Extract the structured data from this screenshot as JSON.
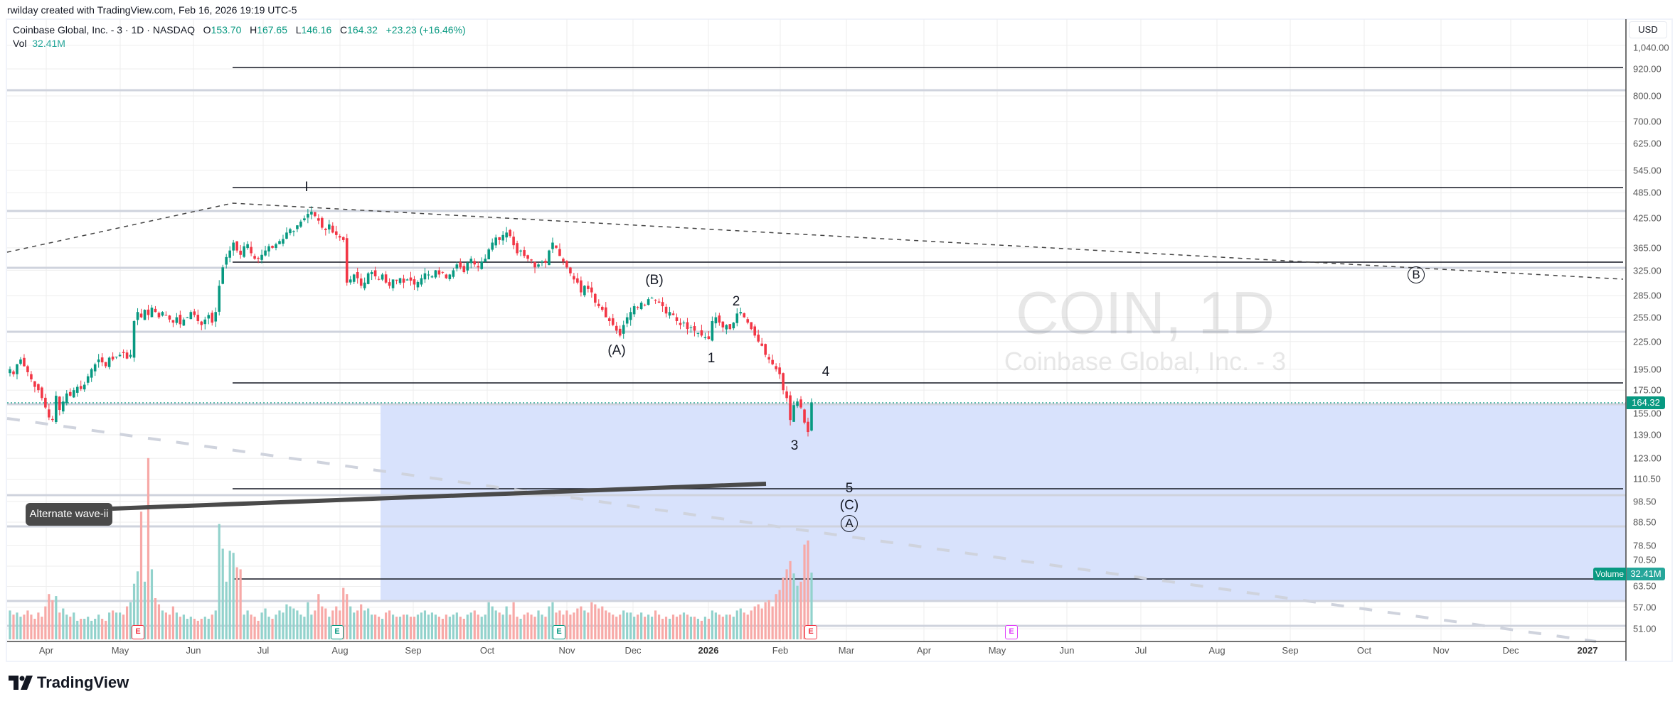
{
  "header": {
    "credit": "rwilday created with TradingView.com, Feb 16, 2026 19:19 UTC-5"
  },
  "legend": {
    "symbol": "Coinbase Global, Inc. - 3 · 1D · NASDAQ",
    "o_label": "O",
    "o": "153.70",
    "h_label": "H",
    "h": "167.65",
    "l_label": "L",
    "l": "146.16",
    "c_label": "C",
    "c": "164.32",
    "change": "+23.23 (+16.46%)",
    "vol_label": "Vol",
    "vol": "32.41M"
  },
  "watermark": {
    "ticker": "COIN, 1D",
    "name": "Coinbase Global, Inc. - 3"
  },
  "price_axis": {
    "currency": "USD",
    "labels": [
      "1,040.00",
      "920.00",
      "800.00",
      "700.00",
      "625.00",
      "545.00",
      "485.00",
      "425.00",
      "365.00",
      "325.00",
      "285.00",
      "255.00",
      "225.00",
      "195.00",
      "175.00",
      "155.00",
      "139.00",
      "123.00",
      "110.50",
      "98.50",
      "88.50",
      "78.50",
      "70.50",
      "63.50",
      "57.00",
      "51.00"
    ],
    "last_price": "164.32",
    "volume_label": "Volume",
    "volume_value": "32.41M"
  },
  "time_axis": {
    "labels": [
      "Apr",
      "May",
      "Jun",
      "Jul",
      "Aug",
      "Sep",
      "Oct",
      "Nov",
      "Dec",
      "2026",
      "Feb",
      "Mar",
      "Apr",
      "May",
      "Jun",
      "Jul",
      "Aug",
      "Sep",
      "Oct",
      "Nov",
      "Dec",
      "2027"
    ]
  },
  "annotations": {
    "alternate": "Alternate wave-ii",
    "waves": [
      "I",
      "(B)",
      "(A)",
      "1",
      "2",
      "3",
      "4",
      "5",
      "(C)",
      "A",
      "B"
    ]
  },
  "earnings": [
    "E",
    "E",
    "E",
    "E",
    "E"
  ],
  "colors": {
    "up": "#089981",
    "down": "#f23645",
    "vol_up": "#92d2cc",
    "vol_down": "#f7a9a7",
    "zone": "#d6e0fc"
  },
  "chart_data": {
    "type": "candlestick",
    "title": "Coinbase Global, Inc. - 3 · 1D · NASDAQ",
    "scale": "log",
    "ylim": [
      48,
      1100
    ],
    "x_range": [
      "2025-03-20",
      "2026-12-31"
    ],
    "closes": [
      195,
      190,
      200,
      205,
      198,
      192,
      185,
      178,
      175,
      168,
      160,
      152,
      150,
      170,
      158,
      165,
      172,
      170,
      175,
      178,
      176,
      180,
      188,
      195,
      200,
      205,
      202,
      198,
      207,
      205,
      208,
      210,
      212,
      206,
      210,
      250,
      262,
      255,
      265,
      258,
      268,
      262,
      255,
      262,
      258,
      252,
      248,
      255,
      246,
      252,
      255,
      262,
      258,
      250,
      245,
      252,
      258,
      248,
      262,
      300,
      330,
      348,
      360,
      375,
      360,
      352,
      368,
      372,
      355,
      345,
      345,
      352,
      360,
      368,
      365,
      372,
      378,
      382,
      395,
      402,
      398,
      410,
      418,
      425,
      435,
      440,
      430,
      420,
      405,
      400,
      412,
      395,
      390,
      385,
      380,
      305,
      310,
      318,
      312,
      300,
      305,
      320,
      322,
      315,
      310,
      318,
      305,
      300,
      310,
      308,
      312,
      305,
      310,
      308,
      302,
      306,
      312,
      320,
      318,
      315,
      325,
      318,
      322,
      312,
      318,
      325,
      335,
      330,
      322,
      338,
      345,
      335,
      330,
      340,
      345,
      362,
      375,
      385,
      380,
      390,
      395,
      388,
      370,
      355,
      360,
      350,
      345,
      342,
      330,
      335,
      340,
      338,
      360,
      375,
      365,
      350,
      340,
      330,
      320,
      310,
      305,
      290,
      300,
      295,
      290,
      275,
      270,
      265,
      255,
      250,
      245,
      238,
      232,
      245,
      255,
      262,
      270,
      268,
      275,
      272,
      280,
      282,
      278,
      275,
      270,
      260,
      262,
      258,
      250,
      245,
      248,
      240,
      242,
      238,
      235,
      232,
      230,
      228,
      250,
      255,
      248,
      242,
      245,
      240,
      248,
      260,
      262,
      255,
      248,
      240,
      232,
      225,
      220,
      210,
      205,
      200,
      195,
      190,
      175,
      168,
      150,
      162,
      165,
      160,
      148,
      141,
      164.32
    ],
    "volumes": [
      14,
      12,
      13,
      11,
      12,
      14,
      12,
      10,
      13,
      11,
      16,
      22,
      19,
      21,
      13,
      15,
      12,
      11,
      13,
      9,
      10,
      10,
      11,
      9,
      10,
      12,
      10,
      9,
      13,
      14,
      13,
      13,
      12,
      16,
      18,
      27,
      33,
      62,
      28,
      88,
      34,
      20,
      17,
      14,
      13,
      12,
      16,
      13,
      11,
      12,
      10,
      11,
      10,
      9,
      10,
      11,
      10,
      12,
      14,
      56,
      44,
      28,
      43,
      42,
      35,
      34,
      12,
      14,
      12,
      11,
      9,
      13,
      15,
      11,
      10,
      12,
      14,
      13,
      17,
      16,
      15,
      14,
      12,
      11,
      18,
      12,
      14,
      22,
      16,
      15,
      11,
      14,
      16,
      14,
      25,
      22,
      16,
      13,
      14,
      17,
      14,
      15,
      12,
      12,
      11,
      10,
      13,
      14,
      12,
      11,
      11,
      12,
      12,
      11,
      11,
      12,
      13,
      14,
      12,
      13,
      12,
      11,
      10,
      12,
      11,
      12,
      13,
      11,
      10,
      12,
      13,
      14,
      12,
      11,
      12,
      18,
      16,
      14,
      13,
      12,
      16,
      12,
      18,
      11,
      10,
      12,
      13,
      12,
      11,
      14,
      12,
      11,
      16,
      18,
      13,
      14,
      12,
      14,
      12,
      13,
      15,
      16,
      14,
      13,
      18,
      17,
      15,
      16,
      14,
      13,
      12,
      11,
      12,
      14,
      13,
      13,
      11,
      12,
      13,
      11,
      12,
      11,
      14,
      12,
      10,
      11,
      10,
      12,
      11,
      12,
      13,
      12,
      11,
      11,
      10,
      9,
      11,
      10,
      14,
      13,
      12,
      11,
      12,
      12,
      11,
      14,
      15,
      13,
      12,
      14,
      16,
      17,
      15,
      18,
      19,
      16,
      22,
      24,
      30,
      34,
      38,
      32,
      26,
      28,
      46,
      48,
      32.41
    ]
  }
}
